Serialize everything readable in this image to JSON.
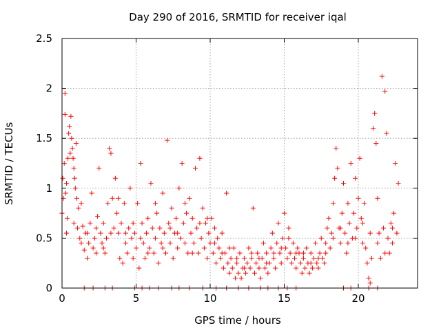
{
  "chart_data": {
    "type": "scatter",
    "title": "Day 290 of 2016, SRMTID for receiver iqal",
    "xlabel": "GPS time / hours",
    "ylabel": "SRMTID / TECUs",
    "xlim": [
      0,
      24
    ],
    "ylim": [
      0,
      2.5
    ],
    "xticks": [
      0,
      5,
      10,
      15,
      20
    ],
    "yticks": [
      0,
      0.5,
      1,
      1.5,
      2,
      2.5
    ],
    "xtick_labels": [
      "0",
      "5",
      "10",
      "15",
      "20"
    ],
    "ytick_labels": [
      "0",
      "0.5",
      "1",
      "1.5",
      "2",
      "2.5"
    ],
    "grid": true,
    "marker": "+",
    "color": "#ff0000",
    "series": [
      {
        "name": "SRMTID",
        "points": [
          [
            0.0,
            0.75
          ],
          [
            0.05,
            1.1
          ],
          [
            0.1,
            0.9
          ],
          [
            0.15,
            1.25
          ],
          [
            0.2,
            1.95
          ],
          [
            0.2,
            1.74
          ],
          [
            0.25,
            0.95
          ],
          [
            0.3,
            1.05
          ],
          [
            0.35,
            0.7
          ],
          [
            0.4,
            1.3
          ],
          [
            0.45,
            1.55
          ],
          [
            0.5,
            1.62
          ],
          [
            0.55,
            1.35
          ],
          [
            0.6,
            1.72
          ],
          [
            0.65,
            1.5
          ],
          [
            0.7,
            1.4
          ],
          [
            0.75,
            1.3
          ],
          [
            0.8,
            1.2
          ],
          [
            0.85,
            1.1
          ],
          [
            0.9,
            1.0
          ],
          [
            0.95,
            1.45
          ],
          [
            1.0,
            0.9
          ],
          [
            1.05,
            0.6
          ],
          [
            1.1,
            0.8
          ],
          [
            1.2,
            0.5
          ],
          [
            1.3,
            0.45
          ],
          [
            1.4,
            0.62
          ],
          [
            1.5,
            0.38
          ],
          [
            1.6,
            0.55
          ],
          [
            1.7,
            0.3
          ],
          [
            1.8,
            0.45
          ],
          [
            1.9,
            0.65
          ],
          [
            2.0,
            0.95
          ],
          [
            2.1,
            0.4
          ],
          [
            2.2,
            0.5
          ],
          [
            2.3,
            0.35
          ],
          [
            2.4,
            0.72
          ],
          [
            2.5,
            1.2
          ],
          [
            2.6,
            0.55
          ],
          [
            2.7,
            0.45
          ],
          [
            2.8,
            0.65
          ],
          [
            2.9,
            0.35
          ],
          [
            3.0,
            0.5
          ],
          [
            3.1,
            0.85
          ],
          [
            3.2,
            1.4
          ],
          [
            3.3,
            1.35
          ],
          [
            3.4,
            0.9
          ],
          [
            3.5,
            0.6
          ],
          [
            3.6,
            1.1
          ],
          [
            3.7,
            0.75
          ],
          [
            3.8,
            0.55
          ],
          [
            3.9,
            0.3
          ],
          [
            4.0,
            0.65
          ],
          [
            4.1,
            0.25
          ],
          [
            4.2,
            0.85
          ],
          [
            4.3,
            0.45
          ],
          [
            4.4,
            0.35
          ],
          [
            4.5,
            0.6
          ],
          [
            4.6,
            1.0
          ],
          [
            4.7,
            0.5
          ],
          [
            4.8,
            0.3
          ],
          [
            4.9,
            0.55
          ],
          [
            5.0,
            0.4
          ],
          [
            5.1,
            0.85
          ],
          [
            5.2,
            0.2
          ],
          [
            5.3,
            1.25
          ],
          [
            5.4,
            0.65
          ],
          [
            5.5,
            0.45
          ],
          [
            5.6,
            0.3
          ],
          [
            5.7,
            0.55
          ],
          [
            5.8,
            0.7
          ],
          [
            5.9,
            0.4
          ],
          [
            6.0,
            1.05
          ],
          [
            6.1,
            0.6
          ],
          [
            6.2,
            0.35
          ],
          [
            6.3,
            0.5
          ],
          [
            6.4,
            0.75
          ],
          [
            6.5,
            0.25
          ],
          [
            6.6,
            0.6
          ],
          [
            6.7,
            0.45
          ],
          [
            6.8,
            0.95
          ],
          [
            6.9,
            0.55
          ],
          [
            7.0,
            0.35
          ],
          [
            7.1,
            1.48
          ],
          [
            7.2,
            0.65
          ],
          [
            7.3,
            0.45
          ],
          [
            7.4,
            0.8
          ],
          [
            7.5,
            0.3
          ],
          [
            7.6,
            0.55
          ],
          [
            7.7,
            0.7
          ],
          [
            7.8,
            0.4
          ],
          [
            7.9,
            1.0
          ],
          [
            8.0,
            0.5
          ],
          [
            8.1,
            1.25
          ],
          [
            8.2,
            0.65
          ],
          [
            8.3,
            0.45
          ],
          [
            8.4,
            0.75
          ],
          [
            8.5,
            0.35
          ],
          [
            8.6,
            0.9
          ],
          [
            8.7,
            0.55
          ],
          [
            8.8,
            0.7
          ],
          [
            8.9,
            0.45
          ],
          [
            9.0,
            1.2
          ],
          [
            9.1,
            0.6
          ],
          [
            9.2,
            0.35
          ],
          [
            9.3,
            1.3
          ],
          [
            9.4,
            0.5
          ],
          [
            9.5,
            0.8
          ],
          [
            9.6,
            0.4
          ],
          [
            9.7,
            0.65
          ],
          [
            9.8,
            0.3
          ],
          [
            9.9,
            0.55
          ],
          [
            10.0,
            0.45
          ],
          [
            10.1,
            0.7
          ],
          [
            10.2,
            0.35
          ],
          [
            10.3,
            0.6
          ],
          [
            10.4,
            0.25
          ],
          [
            10.5,
            0.5
          ],
          [
            10.6,
            0.4
          ],
          [
            10.7,
            0.3
          ],
          [
            10.8,
            0.55
          ],
          [
            10.9,
            0.2
          ],
          [
            11.0,
            0.35
          ],
          [
            11.1,
            0.95
          ],
          [
            11.2,
            0.25
          ],
          [
            11.3,
            0.15
          ],
          [
            11.4,
            0.3
          ],
          [
            11.5,
            0.2
          ],
          [
            11.6,
            0.4
          ],
          [
            11.7,
            0.1
          ],
          [
            11.8,
            0.25
          ],
          [
            11.9,
            0.15
          ],
          [
            12.0,
            0.35
          ],
          [
            12.1,
            0.1
          ],
          [
            12.2,
            0.2
          ],
          [
            12.3,
            0.3
          ],
          [
            12.4,
            0.15
          ],
          [
            12.5,
            0.25
          ],
          [
            12.6,
            0.4
          ],
          [
            12.7,
            0.2
          ],
          [
            12.8,
            0.3
          ],
          [
            12.9,
            0.8
          ],
          [
            13.0,
            0.15
          ],
          [
            13.1,
            0.25
          ],
          [
            13.2,
            0.35
          ],
          [
            13.3,
            0.2
          ],
          [
            13.4,
            0.1
          ],
          [
            13.5,
            0.3
          ],
          [
            13.6,
            0.45
          ],
          [
            13.7,
            0.2
          ],
          [
            13.8,
            0.35
          ],
          [
            13.9,
            0.15
          ],
          [
            14.0,
            0.25
          ],
          [
            14.1,
            0.4
          ],
          [
            14.2,
            0.55
          ],
          [
            14.3,
            0.3
          ],
          [
            14.4,
            0.2
          ],
          [
            14.5,
            0.45
          ],
          [
            14.6,
            0.65
          ],
          [
            14.7,
            0.35
          ],
          [
            14.8,
            0.25
          ],
          [
            14.9,
            0.5
          ],
          [
            15.0,
            0.75
          ],
          [
            15.1,
            0.4
          ],
          [
            15.2,
            0.3
          ],
          [
            15.3,
            0.6
          ],
          [
            15.4,
            0.35
          ],
          [
            15.5,
            0.25
          ],
          [
            15.6,
            0.45
          ],
          [
            15.7,
            0.3
          ],
          [
            15.8,
            0.2
          ],
          [
            15.9,
            0.4
          ],
          [
            16.0,
            0.35
          ],
          [
            16.1,
            0.25
          ],
          [
            16.2,
            0.15
          ],
          [
            16.3,
            0.3
          ],
          [
            16.4,
            0.2
          ],
          [
            16.5,
            0.4
          ],
          [
            16.6,
            0.25
          ],
          [
            16.7,
            0.15
          ],
          [
            16.8,
            0.35
          ],
          [
            16.9,
            0.2
          ],
          [
            17.0,
            0.3
          ],
          [
            17.1,
            0.45
          ],
          [
            17.2,
            0.25
          ],
          [
            17.3,
            0.2
          ],
          [
            17.4,
            0.35
          ],
          [
            17.5,
            0.5
          ],
          [
            17.6,
            0.3
          ],
          [
            17.7,
            0.25
          ],
          [
            17.8,
            0.45
          ],
          [
            17.9,
            0.6
          ],
          [
            18.0,
            0.7
          ],
          [
            18.1,
            0.4
          ],
          [
            18.2,
            0.55
          ],
          [
            18.3,
            0.85
          ],
          [
            18.4,
            1.1
          ],
          [
            18.5,
            1.4
          ],
          [
            18.6,
            1.2
          ],
          [
            18.7,
            0.6
          ],
          [
            18.8,
            0.45
          ],
          [
            18.9,
            0.75
          ],
          [
            19.0,
            1.05
          ],
          [
            19.1,
            0.55
          ],
          [
            19.2,
            0.35
          ],
          [
            19.3,
            0.85
          ],
          [
            19.4,
            0.65
          ],
          [
            19.5,
            1.25
          ],
          [
            19.6,
            0.5
          ],
          [
            19.7,
            0.75
          ],
          [
            19.8,
            1.1
          ],
          [
            19.9,
            0.6
          ],
          [
            20.0,
            0.9
          ],
          [
            20.1,
            1.3
          ],
          [
            20.2,
            0.7
          ],
          [
            20.3,
            0.45
          ],
          [
            20.4,
            0.85
          ],
          [
            20.5,
            0.4
          ],
          [
            20.6,
            0.25
          ],
          [
            20.7,
            0.1
          ],
          [
            20.8,
            0.05
          ],
          [
            20.9,
            0.3
          ],
          [
            21.0,
            1.6
          ],
          [
            21.1,
            1.75
          ],
          [
            21.2,
            1.45
          ],
          [
            21.3,
            0.9
          ],
          [
            21.4,
            0.55
          ],
          [
            21.5,
            0.3
          ],
          [
            21.6,
            2.12
          ],
          [
            21.7,
            0.6
          ],
          [
            21.8,
            1.97
          ],
          [
            21.9,
            1.55
          ],
          [
            22.0,
            0.5
          ],
          [
            22.1,
            0.35
          ],
          [
            22.2,
            0.65
          ],
          [
            22.3,
            0.45
          ],
          [
            22.4,
            0.75
          ],
          [
            22.5,
            1.25
          ],
          [
            22.6,
            0.55
          ],
          [
            22.7,
            1.05
          ],
          [
            0.3,
            0.55
          ],
          [
            0.8,
            0.65
          ],
          [
            1.3,
            0.85
          ],
          [
            1.7,
            0.55
          ],
          [
            2.3,
            0.6
          ],
          [
            2.8,
            0.4
          ],
          [
            3.3,
            0.55
          ],
          [
            3.8,
            0.9
          ],
          [
            4.3,
            0.55
          ],
          [
            4.8,
            0.65
          ],
          [
            5.3,
            0.5
          ],
          [
            5.8,
            0.35
          ],
          [
            6.3,
            0.85
          ],
          [
            6.8,
            0.4
          ],
          [
            7.3,
            0.6
          ],
          [
            7.8,
            0.55
          ],
          [
            8.3,
            0.85
          ],
          [
            8.8,
            0.35
          ],
          [
            9.3,
            0.65
          ],
          [
            9.8,
            0.7
          ],
          [
            10.3,
            0.45
          ],
          [
            10.8,
            0.35
          ],
          [
            11.3,
            0.4
          ],
          [
            11.8,
            0.3
          ],
          [
            12.3,
            0.2
          ],
          [
            12.8,
            0.35
          ],
          [
            13.3,
            0.3
          ],
          [
            13.8,
            0.25
          ],
          [
            14.3,
            0.35
          ],
          [
            14.8,
            0.4
          ],
          [
            15.3,
            0.5
          ],
          [
            15.8,
            0.35
          ],
          [
            16.3,
            0.35
          ],
          [
            16.8,
            0.25
          ],
          [
            17.3,
            0.3
          ],
          [
            17.8,
            0.35
          ],
          [
            18.3,
            0.5
          ],
          [
            18.8,
            0.6
          ],
          [
            19.3,
            0.45
          ],
          [
            19.8,
            0.5
          ],
          [
            20.3,
            0.65
          ],
          [
            20.8,
            0.55
          ],
          [
            21.3,
            0.45
          ],
          [
            21.8,
            0.35
          ],
          [
            22.3,
            0.6
          ],
          [
            1.5,
            0.0
          ],
          [
            2.1,
            0.0
          ],
          [
            2.9,
            0.0
          ],
          [
            3.4,
            0.0
          ],
          [
            4.9,
            0.0
          ],
          [
            5.4,
            0.0
          ],
          [
            5.9,
            0.0
          ],
          [
            6.5,
            0.0
          ],
          [
            7.4,
            0.0
          ],
          [
            7.9,
            0.0
          ],
          [
            8.6,
            0.0
          ],
          [
            9.5,
            0.0
          ],
          [
            10.4,
            0.0
          ],
          [
            11.1,
            0.0
          ],
          [
            11.9,
            0.0
          ],
          [
            12.6,
            0.0
          ],
          [
            13.4,
            0.0
          ],
          [
            13.9,
            0.0
          ],
          [
            14.6,
            0.0
          ],
          [
            15.2,
            0.0
          ],
          [
            15.8,
            0.0
          ],
          [
            19.0,
            0.0
          ],
          [
            19.5,
            0.0
          ],
          [
            20.7,
            0.0
          ],
          [
            21.3,
            0.0
          ]
        ]
      }
    ]
  }
}
